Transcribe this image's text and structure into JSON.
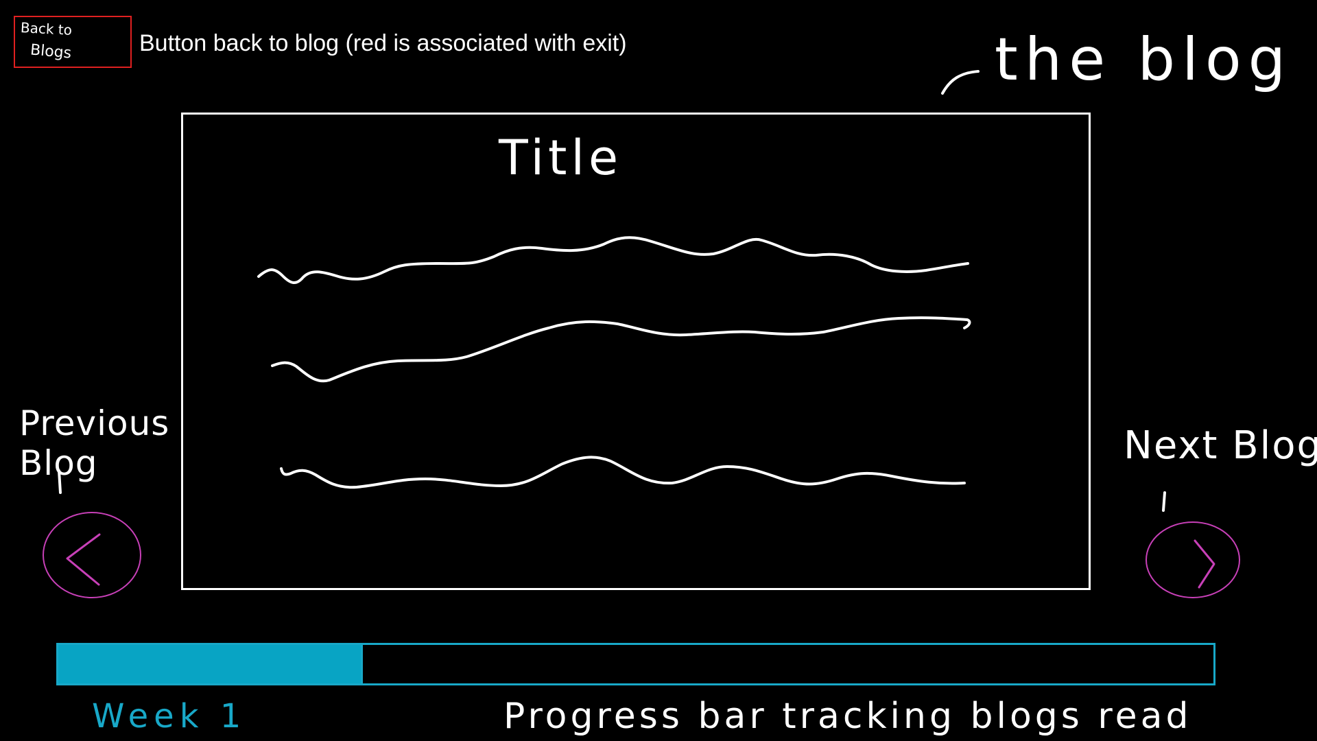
{
  "back_button": {
    "label_line1": "Back to",
    "label_line2": "Blogs",
    "border_color": "#e02020"
  },
  "annotations": {
    "back_button_note": "Button back to blog (red is associated with exit)",
    "blog_pointer": "the blog",
    "previous": "Previous Blog",
    "next": "Next Blog",
    "progress_note": "Progress bar tracking blogs read"
  },
  "blog": {
    "title": "Title",
    "text_lines": 3
  },
  "navigation": {
    "prev_icon": "chevron-left-icon",
    "next_icon": "chevron-right-icon",
    "circle_color": "#c840b8"
  },
  "progress": {
    "label": "Week 1",
    "fraction": 0.262,
    "color": "#08a4c4"
  }
}
